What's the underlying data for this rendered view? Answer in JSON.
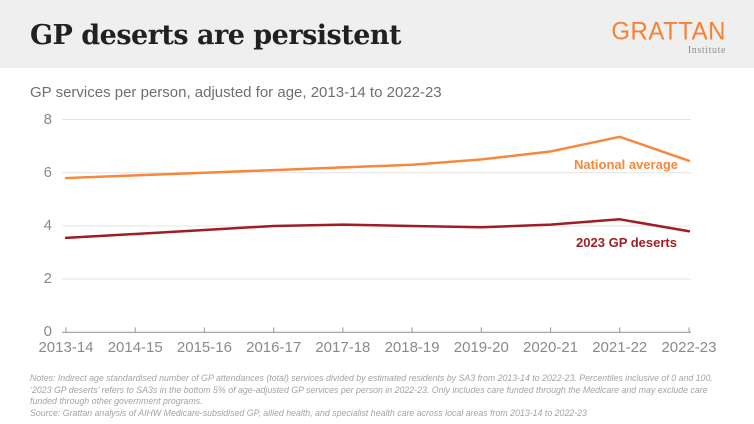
{
  "header": {
    "title": "GP deserts are persistent",
    "logo": {
      "main": "GRATTAN",
      "sub": "Institute"
    }
  },
  "chart_data": {
    "type": "line",
    "title": "GP services per person, adjusted for age, 2013-14 to 2022-23",
    "categories": [
      "2013-14",
      "2014-15",
      "2015-16",
      "2016-17",
      "2017-18",
      "2018-19",
      "2019-20",
      "2020-21",
      "2021-22",
      "2022-23"
    ],
    "series": [
      {
        "name": "National average",
        "color": "#f6873b",
        "values": [
          5.8,
          5.9,
          6.0,
          6.1,
          6.2,
          6.3,
          6.5,
          6.8,
          7.35,
          6.45
        ]
      },
      {
        "name": "2023 GP deserts",
        "color": "#a01e23",
        "values": [
          3.55,
          3.7,
          3.85,
          4.0,
          4.05,
          4.0,
          3.95,
          4.05,
          4.25,
          3.8
        ]
      }
    ],
    "ylim": [
      0,
      8
    ],
    "yticks": [
      0,
      2,
      4,
      6,
      8
    ],
    "grid": "horizontal gridlines at ticks, x-axis baseline with inward ticks",
    "legend_position": "inline labels right of lines",
    "colors": {
      "gridline": "#e4e4e4",
      "axis": "#a6a6a6",
      "tick_labels": "#8a8a8a"
    }
  },
  "footer": {
    "notes": "Notes: Indirect age standardised number of GP attendances (total) services divided by estimated residents by SA3 from 2013-14 to 2022-23. Percentiles inclusive of 0 and 100. ‘2023 GP deserts’ refers to SA3s in the bottom 5% of age-adjusted GP services per person in 2022-23. Only includes care funded through the Medicare and may exclude care funded through other government programs.",
    "source": "Source: Grattan analysis of AIHW Medicare-subsidised GP, allied health, and specialist health care across local areas from 2013-14 to 2022-23"
  }
}
